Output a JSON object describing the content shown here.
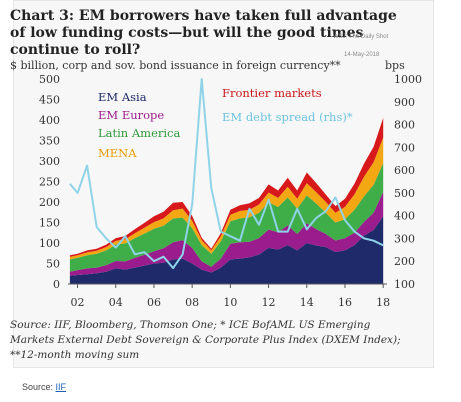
{
  "chart_data": {
    "type": "area",
    "title": "Chart 3: EM borrowers have taken full advantage of low funding costs—but will the good times continue to roll?",
    "ylabel_left": "$ billion, corp and sov. bond issuance in foreign currency**",
    "ylabel_right": "bps",
    "x_ticks": [
      "02",
      "04",
      "06",
      "08",
      "10",
      "12",
      "14",
      "16",
      "18"
    ],
    "y_left_ticks": [
      "0",
      "50",
      "100",
      "150",
      "200",
      "250",
      "300",
      "350",
      "400",
      "450",
      "500"
    ],
    "y_right_ticks": [
      "100",
      "200",
      "300",
      "400",
      "500",
      "600",
      "700",
      "800",
      "900",
      "1000"
    ],
    "ylim_left": [
      0,
      500
    ],
    "ylim_right": [
      100,
      1000
    ],
    "xlim": [
      2001.5,
      2018.2
    ],
    "x": [
      2001.6,
      2002.0,
      2002.5,
      2003.0,
      2003.5,
      2004.0,
      2004.5,
      2005.0,
      2005.5,
      2006.0,
      2006.5,
      2007.0,
      2007.5,
      2008.0,
      2008.5,
      2009.0,
      2009.5,
      2010.0,
      2010.5,
      2011.0,
      2011.5,
      2012.0,
      2012.5,
      2013.0,
      2013.5,
      2014.0,
      2014.5,
      2015.0,
      2015.5,
      2016.0,
      2016.5,
      2017.0,
      2017.5,
      2018.0
    ],
    "series": [
      {
        "name": "EM Asia",
        "color": "#1f2a6b",
        "values": [
          20,
          22,
          24,
          26,
          30,
          38,
          35,
          40,
          45,
          50,
          52,
          60,
          62,
          50,
          35,
          28,
          40,
          60,
          62,
          65,
          72,
          88,
          84,
          95,
          82,
          100,
          94,
          90,
          78,
          82,
          95,
          118,
          132,
          165
        ]
      },
      {
        "name": "EM Europe",
        "color": "#9b1c8c",
        "values": [
          10,
          12,
          14,
          14,
          16,
          18,
          20,
          24,
          26,
          30,
          35,
          42,
          45,
          38,
          20,
          14,
          22,
          38,
          40,
          38,
          40,
          45,
          42,
          48,
          40,
          48,
          40,
          32,
          28,
          30,
          30,
          34,
          42,
          60
        ]
      },
      {
        "name": "Latin America",
        "color": "#3fae49",
        "values": [
          30,
          30,
          32,
          34,
          36,
          40,
          44,
          48,
          52,
          55,
          55,
          58,
          55,
          48,
          40,
          32,
          42,
          55,
          58,
          60,
          62,
          66,
          62,
          68,
          62,
          68,
          62,
          52,
          44,
          46,
          56,
          62,
          68,
          70
        ]
      },
      {
        "name": "MENA",
        "color": "#f3a712",
        "values": [
          6,
          6,
          7,
          7,
          8,
          9,
          10,
          12,
          14,
          16,
          18,
          20,
          22,
          18,
          12,
          8,
          12,
          16,
          18,
          18,
          20,
          24,
          22,
          26,
          24,
          30,
          28,
          26,
          24,
          30,
          38,
          48,
          55,
          62
        ]
      },
      {
        "name": "Frontier markets",
        "color": "#d7191c",
        "values": [
          4,
          4,
          5,
          5,
          6,
          7,
          8,
          10,
          12,
          14,
          16,
          18,
          16,
          12,
          6,
          4,
          8,
          12,
          14,
          16,
          16,
          20,
          18,
          22,
          20,
          26,
          22,
          18,
          16,
          20,
          26,
          32,
          38,
          48
        ]
      },
      {
        "name": "EM debt spread (rhs)*",
        "color": "#8fd3e8",
        "axis": "right",
        "values": [
          540,
          500,
          620,
          350,
          300,
          260,
          310,
          230,
          240,
          200,
          220,
          170,
          230,
          450,
          1000,
          520,
          330,
          310,
          290,
          430,
          360,
          470,
          330,
          330,
          430,
          340,
          390,
          420,
          480,
          380,
          330,
          300,
          290,
          270
        ]
      }
    ],
    "legend_placement": "top-left",
    "grid": false
  },
  "watermark": {
    "line1": "WSJ: The Daily Shot",
    "line2": "14-May-2018"
  },
  "source_note": "Source:  IIF, Bloomberg, Thomson One; * ICE BofAML US Emerging Markets External Debt Sovereign & Corporate Plus Index (DXEM Index); **12-month moving sum",
  "footer": {
    "label": "Source: ",
    "link": "IIF"
  }
}
